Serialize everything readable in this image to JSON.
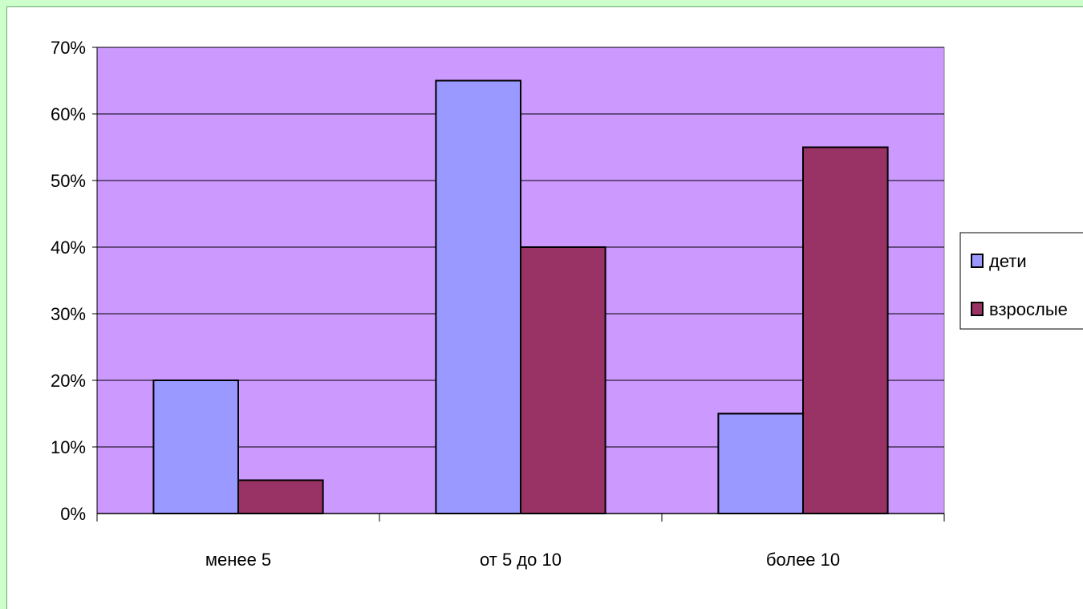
{
  "chart_data": {
    "type": "bar",
    "title": "",
    "xlabel": "",
    "ylabel": "",
    "categories": [
      "менее 5",
      "от 5 до 10",
      "более 10"
    ],
    "y_ticks": [
      "0%",
      "10%",
      "20%",
      "30%",
      "40%",
      "50%",
      "60%",
      "70%"
    ],
    "ylim": [
      0,
      70
    ],
    "unit": "%",
    "grid": true,
    "legend_position": "right",
    "plot_background": "#cc99ff",
    "series": [
      {
        "name": "дети",
        "color": "#9999ff",
        "values": [
          20,
          65,
          15
        ]
      },
      {
        "name": "взрослые",
        "color": "#993366",
        "values": [
          5,
          40,
          55
        ]
      }
    ]
  }
}
